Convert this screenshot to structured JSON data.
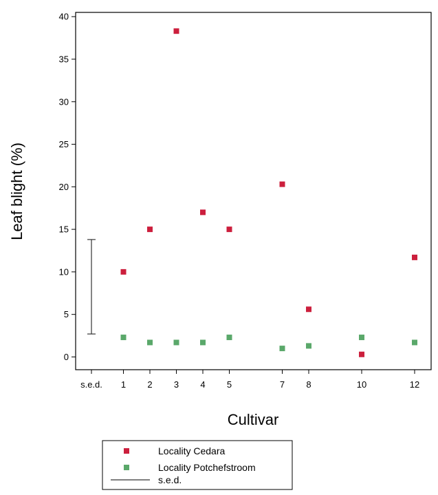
{
  "chart_data": {
    "type": "scatter",
    "xlabel": "Cultivar",
    "ylabel": "Leaf blight (%)",
    "ylim": [
      -1.5,
      40.5
    ],
    "yticks": [
      0,
      5,
      10,
      15,
      20,
      25,
      30,
      35,
      40
    ],
    "x_categories": [
      "s.e.d.",
      "1",
      "2",
      "3",
      "4",
      "5",
      "7",
      "8",
      "10",
      "12"
    ],
    "grid": false,
    "legend_position": "bottom",
    "series": [
      {
        "name": "Locality Cedara",
        "color": "#cc1f3d",
        "marker": "square",
        "x": [
          "1",
          "2",
          "3",
          "4",
          "5",
          "7",
          "8",
          "10",
          "12"
        ],
        "y": [
          10,
          15,
          38.3,
          17,
          15,
          20.3,
          5.6,
          0.3,
          11.7
        ]
      },
      {
        "name": "Locality Potchefstroom",
        "color": "#5aa86a",
        "marker": "square",
        "x": [
          "1",
          "2",
          "3",
          "4",
          "5",
          "7",
          "8",
          "10",
          "12"
        ],
        "y": [
          2.3,
          1.7,
          1.7,
          1.7,
          2.3,
          1.0,
          1.3,
          2.3,
          1.7
        ]
      }
    ],
    "sed_bar": {
      "label": "s.e.d.",
      "x": "s.e.d.",
      "low": 2.7,
      "high": 13.8,
      "color": "#333333"
    }
  }
}
